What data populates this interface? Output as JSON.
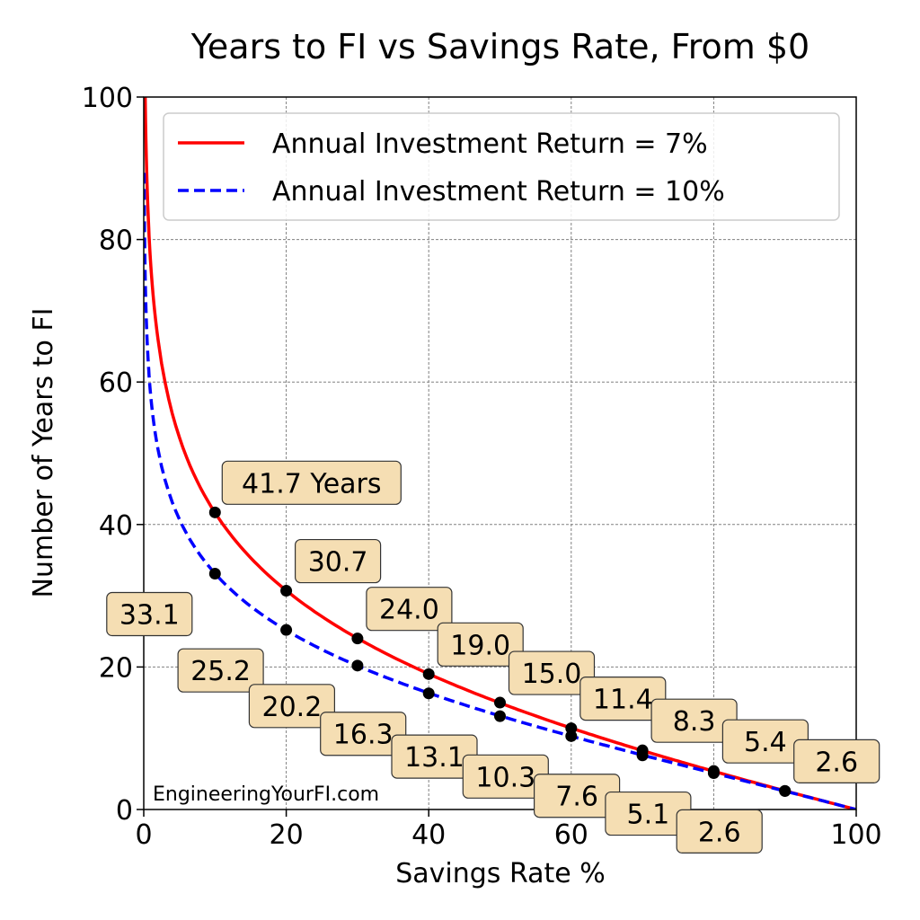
{
  "chart_data": {
    "type": "line",
    "title": "Years to FI vs Savings Rate, From $0",
    "xlabel": "Savings Rate %",
    "ylabel": "Number of Years to FI",
    "xlim": [
      0,
      100
    ],
    "ylim": [
      0,
      100
    ],
    "xticks": [
      "0",
      "20",
      "40",
      "60",
      "80",
      "100"
    ],
    "yticks": [
      "0",
      "20",
      "40",
      "60",
      "80",
      "100"
    ],
    "grid": true,
    "legend_position": "top-right",
    "watermark": "EngineeringYourFI.com",
    "series": [
      {
        "name": "Annual Investment Return = 7%",
        "color": "#ff0000",
        "line_style": "solid",
        "rate": 0.07,
        "points": [
          {
            "x": 10,
            "y": 41.7,
            "label": "41.7 Years"
          },
          {
            "x": 20,
            "y": 30.7,
            "label": "30.7"
          },
          {
            "x": 30,
            "y": 24.0,
            "label": "24.0"
          },
          {
            "x": 40,
            "y": 19.0,
            "label": "19.0"
          },
          {
            "x": 50,
            "y": 15.0,
            "label": "15.0"
          },
          {
            "x": 60,
            "y": 11.4,
            "label": "11.4"
          },
          {
            "x": 70,
            "y": 8.3,
            "label": "8.3"
          },
          {
            "x": 80,
            "y": 5.4,
            "label": "5.4"
          },
          {
            "x": 90,
            "y": 2.6,
            "label": "2.6"
          }
        ]
      },
      {
        "name": "Annual Investment Return = 10%",
        "color": "#0000ff",
        "line_style": "dashed",
        "rate": 0.1,
        "points": [
          {
            "x": 10,
            "y": 33.1,
            "label": "33.1"
          },
          {
            "x": 20,
            "y": 25.2,
            "label": "25.2"
          },
          {
            "x": 30,
            "y": 20.2,
            "label": "20.2"
          },
          {
            "x": 40,
            "y": 16.3,
            "label": "16.3"
          },
          {
            "x": 50,
            "y": 13.1,
            "label": "13.1"
          },
          {
            "x": 60,
            "y": 10.3,
            "label": "10.3"
          },
          {
            "x": 70,
            "y": 7.6,
            "label": "7.6"
          },
          {
            "x": 80,
            "y": 5.1,
            "label": "5.1"
          },
          {
            "x": 90,
            "y": 2.6,
            "label": "2.6"
          }
        ]
      }
    ],
    "annotation_style": {
      "fill": "#f5deb3",
      "stroke": "#333333",
      "point_color": "#000000"
    }
  }
}
